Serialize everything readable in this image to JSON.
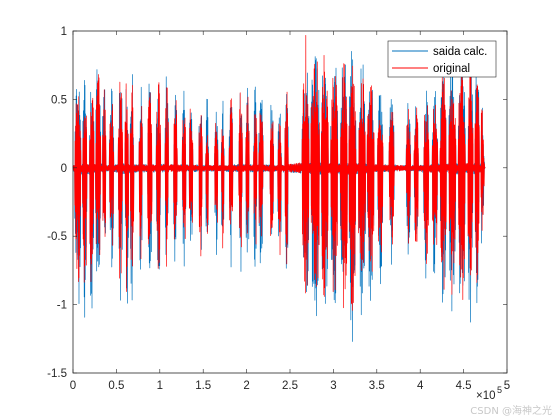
{
  "chart_data": {
    "type": "line",
    "xlim": [
      0,
      500000
    ],
    "ylim": [
      -1.5,
      1
    ],
    "x_exponent_label": "×10",
    "x_exponent_power": "5",
    "x_ticks": [
      0,
      0.5,
      1,
      1.5,
      2,
      2.5,
      3,
      3.5,
      4,
      4.5,
      5
    ],
    "x_tick_labels": [
      "0",
      "0.5",
      "1",
      "1.5",
      "2",
      "2.5",
      "3",
      "3.5",
      "4",
      "4.5",
      "5"
    ],
    "y_ticks": [
      -1.5,
      -1,
      -0.5,
      0,
      0.5,
      1
    ],
    "y_tick_labels": [
      "-1.5",
      "-1",
      "-0.5",
      "0",
      "0.5",
      "1"
    ],
    "grid": false,
    "legend_position": "top-right",
    "series": [
      {
        "name": "saida calc.",
        "color": "#0072BD",
        "envelope_points": [
          [
            0,
            0.55,
            -0.7
          ],
          [
            10000,
            0.8,
            -1.4
          ],
          [
            20000,
            0.7,
            -1.2
          ],
          [
            30000,
            0.9,
            -1.0
          ],
          [
            40000,
            0.5,
            -0.6
          ],
          [
            60000,
            0.85,
            -1.2
          ],
          [
            75000,
            0.6,
            -0.8
          ],
          [
            100000,
            0.75,
            -0.9
          ],
          [
            125000,
            0.6,
            -0.8
          ],
          [
            150000,
            0.55,
            -0.7
          ],
          [
            170000,
            0.5,
            -0.7
          ],
          [
            195000,
            0.7,
            -0.8
          ],
          [
            215000,
            0.6,
            -0.75
          ],
          [
            240000,
            0.5,
            -0.8
          ],
          [
            265000,
            0.85,
            -1.05
          ],
          [
            285000,
            0.95,
            -1.25
          ],
          [
            300000,
            0.85,
            -1.1
          ],
          [
            320000,
            0.9,
            -1.35
          ],
          [
            340000,
            0.75,
            -1.0
          ],
          [
            360000,
            0.6,
            -0.8
          ],
          [
            380000,
            0.5,
            -0.6
          ],
          [
            400000,
            0.5,
            -0.8
          ],
          [
            420000,
            0.75,
            -1.0
          ],
          [
            445000,
            0.85,
            -1.2
          ],
          [
            460000,
            0.95,
            -1.2
          ],
          [
            470000,
            0.8,
            -0.9
          ],
          [
            475000,
            0.1,
            -0.1
          ]
        ]
      },
      {
        "name": "original",
        "color": "#FF0000",
        "envelope_points": [
          [
            0,
            0.5,
            -0.6
          ],
          [
            10000,
            0.7,
            -1.1
          ],
          [
            20000,
            0.65,
            -1.0
          ],
          [
            30000,
            0.8,
            -0.85
          ],
          [
            40000,
            0.45,
            -0.5
          ],
          [
            60000,
            0.75,
            -1.05
          ],
          [
            75000,
            0.55,
            -0.7
          ],
          [
            100000,
            0.65,
            -0.8
          ],
          [
            125000,
            0.55,
            -0.7
          ],
          [
            150000,
            0.5,
            -0.65
          ],
          [
            170000,
            0.45,
            -0.6
          ],
          [
            195000,
            0.6,
            -0.7
          ],
          [
            215000,
            0.55,
            -0.65
          ],
          [
            240000,
            0.45,
            -0.7
          ],
          [
            265000,
            1.0,
            -0.95
          ],
          [
            285000,
            0.9,
            -1.1
          ],
          [
            300000,
            0.8,
            -1.0
          ],
          [
            320000,
            0.8,
            -1.2
          ],
          [
            340000,
            0.7,
            -0.9
          ],
          [
            360000,
            0.55,
            -0.7
          ],
          [
            380000,
            0.45,
            -0.55
          ],
          [
            400000,
            0.45,
            -0.7
          ],
          [
            420000,
            0.7,
            -0.9
          ],
          [
            445000,
            0.8,
            -1.05
          ],
          [
            460000,
            1.0,
            -1.05
          ],
          [
            470000,
            0.7,
            -0.8
          ],
          [
            475000,
            0.05,
            -0.05
          ]
        ]
      }
    ],
    "burst_segments": [
      [
        2000,
        9000
      ],
      [
        11000,
        16000
      ],
      [
        19000,
        24000
      ],
      [
        26000,
        32000
      ],
      [
        34000,
        38000
      ],
      [
        42000,
        47000
      ],
      [
        52000,
        57000
      ],
      [
        60000,
        64000
      ],
      [
        66000,
        70000
      ],
      [
        76000,
        80000
      ],
      [
        86000,
        91000
      ],
      [
        96000,
        101000
      ],
      [
        106000,
        110000
      ],
      [
        116000,
        120000
      ],
      [
        126000,
        130000
      ],
      [
        134000,
        138000
      ],
      [
        145000,
        149000
      ],
      [
        153000,
        156000
      ],
      [
        163000,
        167000
      ],
      [
        171000,
        174000
      ],
      [
        180000,
        184000
      ],
      [
        191000,
        195000
      ],
      [
        199000,
        203000
      ],
      [
        208000,
        212000
      ],
      [
        214000,
        219000
      ],
      [
        227000,
        231000
      ],
      [
        236000,
        240000
      ],
      [
        244000,
        248000
      ],
      [
        264000,
        272000
      ],
      [
        274000,
        284000
      ],
      [
        286000,
        294000
      ],
      [
        297000,
        305000
      ],
      [
        308000,
        316000
      ],
      [
        318000,
        326000
      ],
      [
        329000,
        337000
      ],
      [
        339000,
        347000
      ],
      [
        351000,
        357000
      ],
      [
        364000,
        370000
      ],
      [
        384000,
        389000
      ],
      [
        393000,
        398000
      ],
      [
        404000,
        410000
      ],
      [
        414000,
        420000
      ],
      [
        423000,
        430000
      ],
      [
        433000,
        441000
      ],
      [
        444000,
        452000
      ],
      [
        455000,
        461000
      ],
      [
        463000,
        468000
      ],
      [
        470000,
        474000
      ]
    ]
  },
  "legend": {
    "items": [
      {
        "label": "saida calc.",
        "color": "#0072BD"
      },
      {
        "label": "original",
        "color": "#FF0000"
      }
    ]
  },
  "watermark": "CSDN @海神之光"
}
